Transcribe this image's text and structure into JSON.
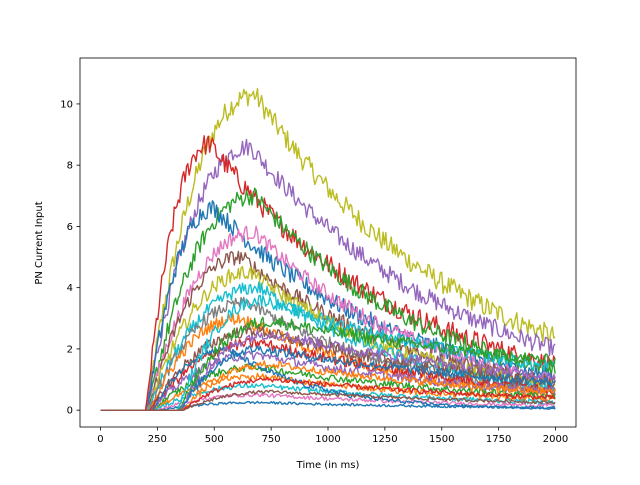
{
  "chart_data": {
    "type": "line",
    "title": "",
    "xlabel": "Time (in ms)",
    "ylabel": "PN Current Input",
    "xlim": [
      -90,
      2090
    ],
    "ylim": [
      -0.55,
      11.5
    ],
    "xticks": [
      0,
      250,
      500,
      750,
      1000,
      1250,
      1500,
      1750,
      2000
    ],
    "yticks": [
      0,
      2,
      4,
      6,
      8,
      10
    ],
    "grid": false,
    "legend": "none",
    "palette": [
      "#1f77b4",
      "#ff7f0e",
      "#2ca02c",
      "#d62728",
      "#9467bd",
      "#8c564b",
      "#e377c2",
      "#7f7f7f",
      "#bcbd22",
      "#17becf"
    ],
    "series_note_fields": [
      "onset_ms",
      "peak_ms",
      "peak_value",
      "end_value",
      "noise"
    ],
    "series": [
      {
        "color": "#bcbd22",
        "onset": 200,
        "peak_time": 680,
        "peak": 10.3,
        "end": 2.4,
        "noise": 0.35
      },
      {
        "color": "#9467bd",
        "onset": 200,
        "peak_time": 660,
        "peak": 8.6,
        "end": 2.0,
        "noise": 0.3
      },
      {
        "color": "#d62728",
        "onset": 200,
        "peak_time": 480,
        "peak": 8.7,
        "end": 1.5,
        "noise": 0.35
      },
      {
        "color": "#2ca02c",
        "onset": 205,
        "peak_time": 680,
        "peak": 7.0,
        "end": 1.3,
        "noise": 0.3
      },
      {
        "color": "#1f77b4",
        "onset": 205,
        "peak_time": 500,
        "peak": 6.6,
        "end": 1.1,
        "noise": 0.3
      },
      {
        "color": "#e377c2",
        "onset": 205,
        "peak_time": 680,
        "peak": 5.8,
        "end": 1.0,
        "noise": 0.25
      },
      {
        "color": "#8c564b",
        "onset": 210,
        "peak_time": 620,
        "peak": 5.0,
        "end": 0.9,
        "noise": 0.25
      },
      {
        "color": "#bcbd22",
        "onset": 210,
        "peak_time": 660,
        "peak": 4.5,
        "end": 0.8,
        "noise": 0.25
      },
      {
        "color": "#17becf",
        "onset": 210,
        "peak_time": 700,
        "peak": 4.0,
        "end": 0.7,
        "noise": 0.22
      },
      {
        "color": "#7f7f7f",
        "onset": 215,
        "peak_time": 650,
        "peak": 3.5,
        "end": 0.6,
        "noise": 0.2
      },
      {
        "color": "#ff7f0e",
        "onset": 215,
        "peak_time": 620,
        "peak": 3.0,
        "end": 0.5,
        "noise": 0.2
      },
      {
        "color": "#8c564b",
        "onset": 220,
        "peak_time": 700,
        "peak": 2.6,
        "end": 0.9,
        "noise": 0.2
      },
      {
        "color": "#d62728",
        "onset": 220,
        "peak_time": 700,
        "peak": 2.2,
        "end": 0.7,
        "noise": 0.18
      },
      {
        "color": "#9467bd",
        "onset": 225,
        "peak_time": 700,
        "peak": 1.8,
        "end": 0.6,
        "noise": 0.15
      },
      {
        "color": "#2ca02c",
        "onset": 230,
        "peak_time": 700,
        "peak": 1.4,
        "end": 0.45,
        "noise": 0.12
      },
      {
        "color": "#ff7f0e",
        "onset": 235,
        "peak_time": 700,
        "peak": 1.1,
        "end": 0.35,
        "noise": 0.1
      },
      {
        "color": "#17becf",
        "onset": 240,
        "peak_time": 700,
        "peak": 0.8,
        "end": 0.25,
        "noise": 0.08
      },
      {
        "color": "#e377c2",
        "onset": 250,
        "peak_time": 700,
        "peak": 0.5,
        "end": 0.15,
        "noise": 0.06
      },
      {
        "color": "#1f77b4",
        "onset": 260,
        "peak_time": 700,
        "peak": 0.25,
        "end": 0.08,
        "noise": 0.04
      },
      {
        "color": "#1f77b4",
        "onset": 230,
        "peak_time": 560,
        "peak": 2.0,
        "end": 0.05,
        "noise": 0.1
      },
      {
        "color": "#17becf",
        "onset": 340,
        "peak_time": 720,
        "peak": 3.6,
        "end": 1.4,
        "noise": 0.2
      },
      {
        "color": "#2ca02c",
        "onset": 345,
        "peak_time": 760,
        "peak": 2.9,
        "end": 1.6,
        "noise": 0.2
      },
      {
        "color": "#9467bd",
        "onset": 350,
        "peak_time": 760,
        "peak": 2.5,
        "end": 1.1,
        "noise": 0.18
      },
      {
        "color": "#1f77b4",
        "onset": 355,
        "peak_time": 700,
        "peak": 2.0,
        "end": 0.9,
        "noise": 0.15
      },
      {
        "color": "#ff7f0e",
        "onset": 360,
        "peak_time": 760,
        "peak": 1.5,
        "end": 0.6,
        "noise": 0.12
      },
      {
        "color": "#d62728",
        "onset": 360,
        "peak_time": 760,
        "peak": 1.0,
        "end": 0.4,
        "noise": 0.08
      },
      {
        "color": "#8c564b",
        "onset": 365,
        "peak_time": 760,
        "peak": 0.6,
        "end": 0.25,
        "noise": 0.05
      }
    ]
  }
}
